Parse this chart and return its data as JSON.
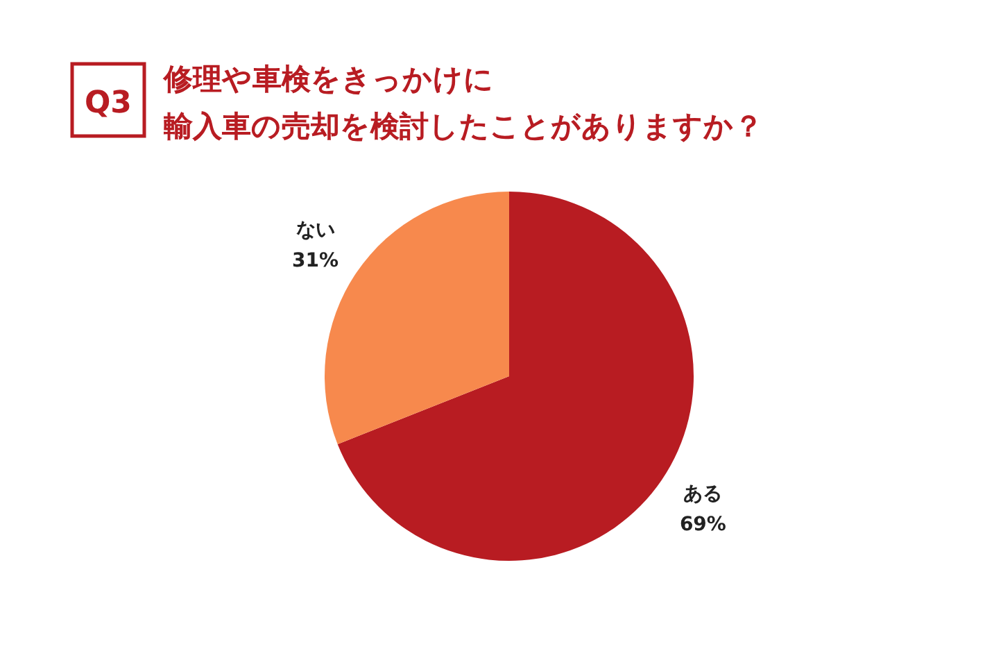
{
  "chart_data": {
    "type": "pie",
    "title": "修理や車検をきっかけに",
    "subtitle": "輸入車の売却を検討したことがありますか？",
    "annotations": [
      "Q3"
    ],
    "categories": [
      "ある",
      "ない"
    ],
    "values": [
      69,
      31
    ],
    "colors": [
      "#b81c22",
      "#f7894d"
    ],
    "value_labels": [
      "69%",
      "31%"
    ]
  }
}
